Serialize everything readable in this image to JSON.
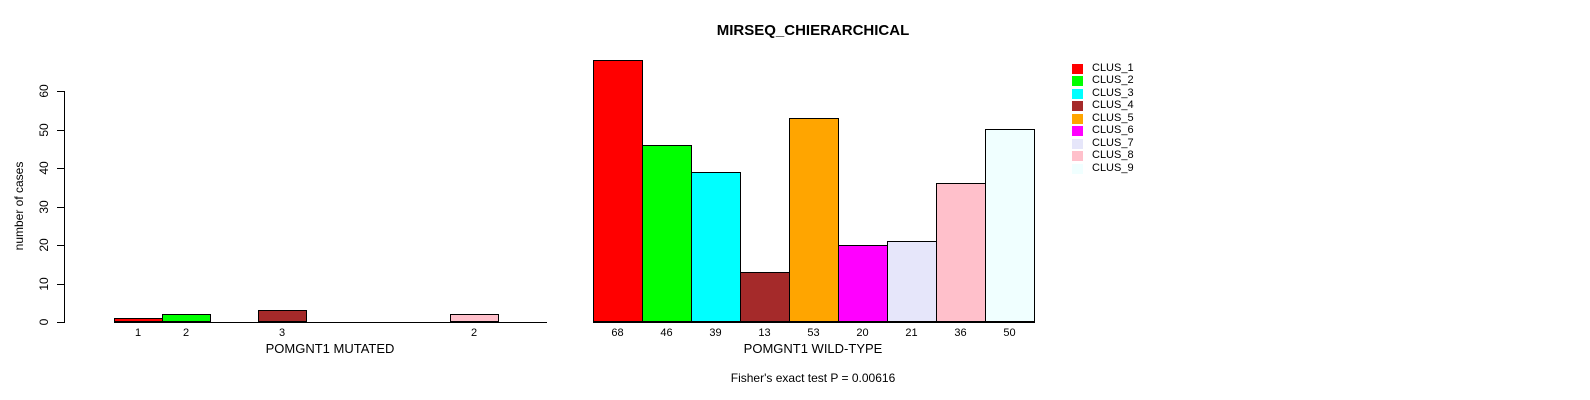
{
  "title": "MIRSEQ_CHIERARCHICAL",
  "footer": "Fisher's exact test P = 0.00616",
  "y_axis": {
    "label": "number of cases",
    "ticks": [
      "0",
      "10",
      "20",
      "30",
      "40",
      "50",
      "60"
    ]
  },
  "legend": {
    "entries": [
      {
        "label": "CLUS_1",
        "color": "#FF0000"
      },
      {
        "label": "CLUS_2",
        "color": "#00FF00"
      },
      {
        "label": "CLUS_3",
        "color": "#00FFFF"
      },
      {
        "label": "CLUS_4",
        "color": "#A52A2A"
      },
      {
        "label": "CLUS_5",
        "color": "#FFA500"
      },
      {
        "label": "CLUS_6",
        "color": "#FF00FF"
      },
      {
        "label": "CLUS_7",
        "color": "#E6E6FA"
      },
      {
        "label": "CLUS_8",
        "color": "#FFC0CB"
      },
      {
        "label": "CLUS_9",
        "color": "#F0FFFF"
      }
    ]
  },
  "chart_data": [
    {
      "type": "bar",
      "panel": "left",
      "title": "MIRSEQ_CHIERARCHICAL",
      "xlabel": "POMGNT1 MUTATED",
      "ylabel": "number of cases",
      "ylim": [
        0,
        60
      ],
      "grid": false,
      "legend_position": "right",
      "categories": [
        "CLUS_1",
        "CLUS_2",
        "CLUS_3",
        "CLUS_4",
        "CLUS_5",
        "CLUS_6",
        "CLUS_7",
        "CLUS_8",
        "CLUS_9"
      ],
      "values": [
        1,
        2,
        0,
        3,
        0,
        0,
        0,
        2,
        0
      ],
      "bar_value_labels": [
        "1",
        "2",
        "",
        "3",
        "",
        "",
        "",
        "2",
        ""
      ],
      "colors": [
        "#FF0000",
        "#00FF00",
        "#00FFFF",
        "#A52A2A",
        "#FFA500",
        "#FF00FF",
        "#E6E6FA",
        "#FFC0CB",
        "#F0FFFF"
      ]
    },
    {
      "type": "bar",
      "panel": "right",
      "xlabel": "POMGNT1 WILD-TYPE",
      "ylabel": "number of cases",
      "ylim": [
        0,
        60
      ],
      "grid": false,
      "annotation": "Fisher's exact test P = 0.00616",
      "categories": [
        "CLUS_1",
        "CLUS_2",
        "CLUS_3",
        "CLUS_4",
        "CLUS_5",
        "CLUS_6",
        "CLUS_7",
        "CLUS_8",
        "CLUS_9"
      ],
      "values": [
        68,
        46,
        39,
        13,
        53,
        20,
        21,
        36,
        50
      ],
      "bar_value_labels": [
        "68",
        "46",
        "39",
        "13",
        "53",
        "20",
        "21",
        "36",
        "50"
      ],
      "colors": [
        "#FF0000",
        "#00FF00",
        "#00FFFF",
        "#A52A2A",
        "#FFA500",
        "#FF00FF",
        "#E6E6FA",
        "#FFC0CB",
        "#F0FFFF"
      ]
    }
  ]
}
